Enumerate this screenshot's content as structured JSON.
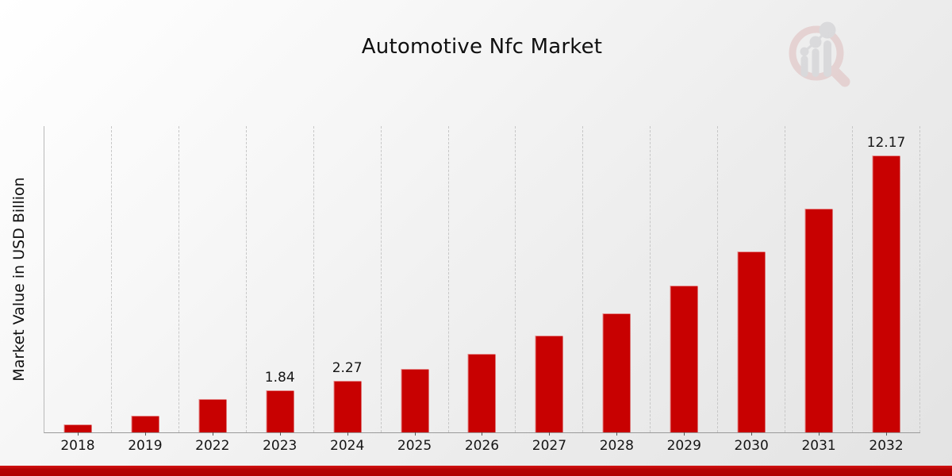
{
  "page": {
    "title": "Automotive Nfc Market",
    "watermark_icon": "magnifier-bar-chart-logo"
  },
  "chart_data": {
    "type": "bar",
    "title": "Automotive Nfc Market",
    "xlabel": "",
    "ylabel": "Market Value in USD Billion",
    "categories": [
      "2018",
      "2019",
      "2022",
      "2023",
      "2024",
      "2025",
      "2026",
      "2027",
      "2028",
      "2029",
      "2030",
      "2031",
      "2032"
    ],
    "values": [
      0.35,
      0.75,
      1.48,
      1.84,
      2.27,
      2.8,
      3.45,
      4.25,
      5.24,
      6.46,
      7.97,
      9.83,
      12.17
    ],
    "data_labels": [
      "",
      "",
      "",
      "1.84",
      "2.27",
      "",
      "",
      "",
      "",
      "",
      "",
      "",
      "12.17"
    ],
    "bar_color": "#c80101",
    "bottom_strip_color": "#b50303",
    "grid": "vertical-dashed",
    "legend": "none",
    "ylim": [
      0,
      13.43
    ]
  }
}
